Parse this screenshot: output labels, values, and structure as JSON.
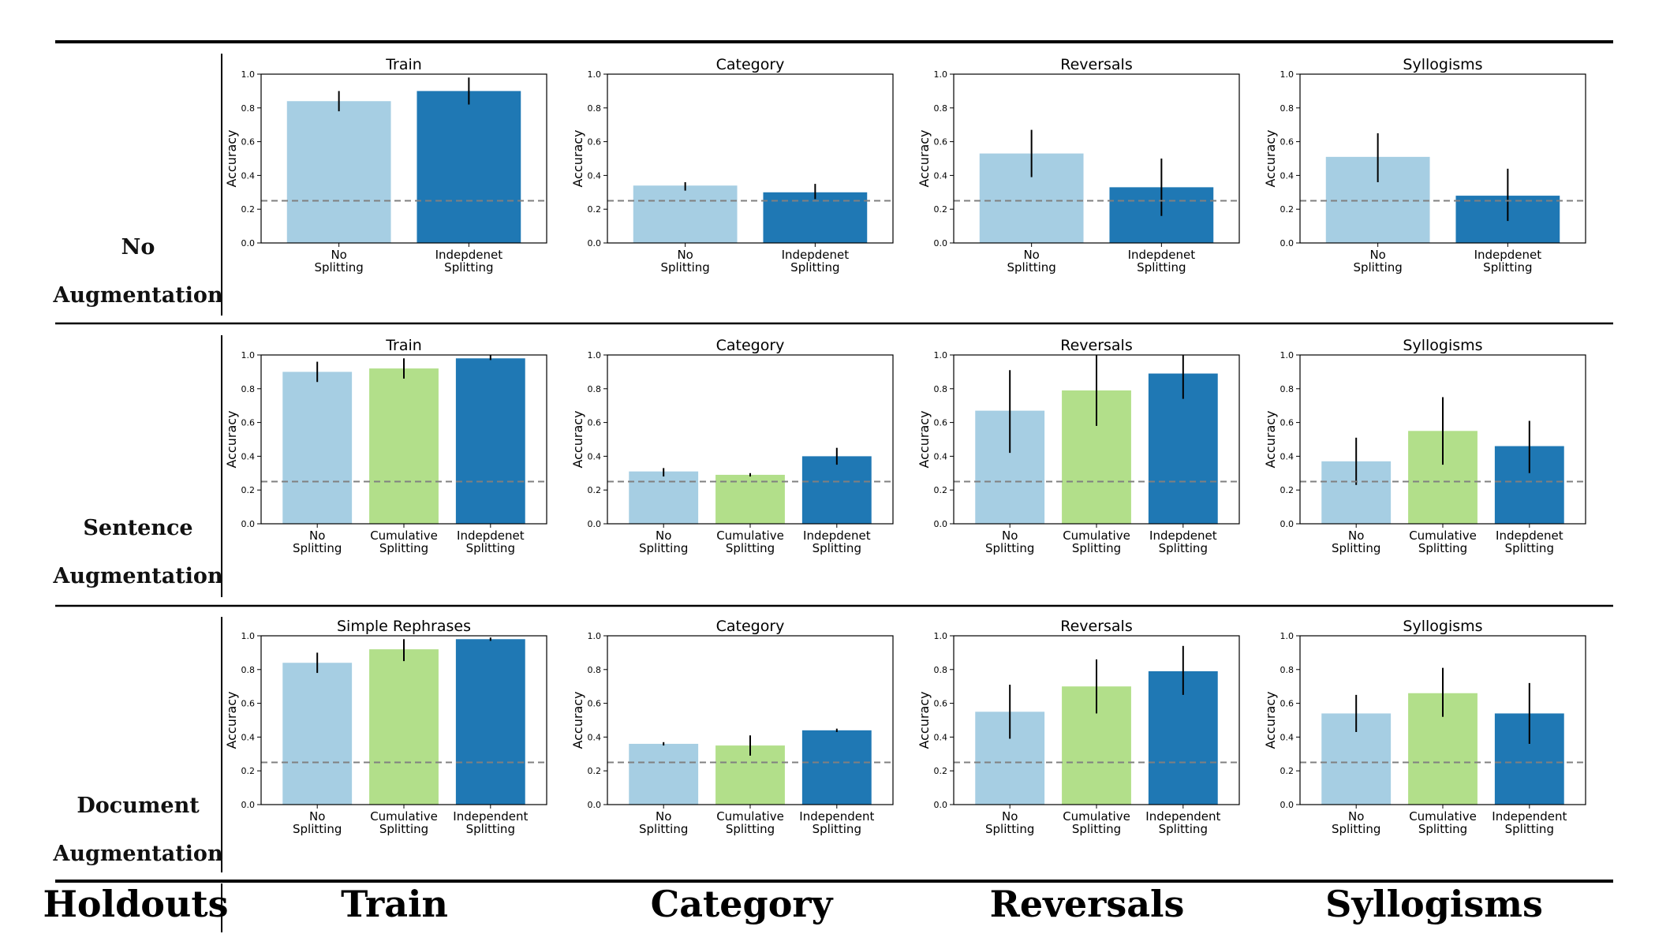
{
  "bottom_labels": {
    "holdouts": "Holdouts",
    "train": "Train",
    "category": "Category",
    "reversals": "Reversals",
    "syllogisms": "Syllogisms"
  },
  "row_labels": [
    {
      "line1": "No",
      "line2": "Augmentation"
    },
    {
      "line1": "Sentence",
      "line2": "Augmentation"
    },
    {
      "line1": "Document",
      "line2": "Augmentation"
    }
  ],
  "colors": {
    "no_splitting": "#a6cee3",
    "cumulative_splitting": "#b2df8a",
    "independent_splitting": "#1f78b4",
    "baseline": "#808080"
  },
  "chart_data": [
    {
      "row": 0,
      "col": 0,
      "type": "bar",
      "title": "Train",
      "ylabel": "Accuracy",
      "ylim": [
        0,
        1
      ],
      "yticks": [
        "0.0",
        "0.2",
        "0.4",
        "0.6",
        "0.8",
        "1.0"
      ],
      "baseline": 0.25,
      "categories": [
        [
          "No",
          "Splitting"
        ],
        [
          "Indepdenet",
          "Splitting"
        ]
      ],
      "values": [
        0.84,
        0.9
      ],
      "err_low": [
        0.78,
        0.82
      ],
      "err_high": [
        0.9,
        0.98
      ],
      "color_keys": [
        "no_splitting",
        "independent_splitting"
      ]
    },
    {
      "row": 0,
      "col": 1,
      "type": "bar",
      "title": "Category",
      "ylabel": "Accuracy",
      "ylim": [
        0,
        1
      ],
      "yticks": [
        "0.0",
        "0.2",
        "0.4",
        "0.6",
        "0.8",
        "1.0"
      ],
      "baseline": 0.25,
      "categories": [
        [
          "No",
          "Splitting"
        ],
        [
          "Indepdenet",
          "Splitting"
        ]
      ],
      "values": [
        0.34,
        0.3
      ],
      "err_low": [
        0.31,
        0.26
      ],
      "err_high": [
        0.36,
        0.35
      ],
      "color_keys": [
        "no_splitting",
        "independent_splitting"
      ]
    },
    {
      "row": 0,
      "col": 2,
      "type": "bar",
      "title": "Reversals",
      "ylabel": "Accuracy",
      "ylim": [
        0,
        1
      ],
      "yticks": [
        "0.0",
        "0.2",
        "0.4",
        "0.6",
        "0.8",
        "1.0"
      ],
      "baseline": 0.25,
      "categories": [
        [
          "No",
          "Splitting"
        ],
        [
          "Indepdenet",
          "Splitting"
        ]
      ],
      "values": [
        0.53,
        0.33
      ],
      "err_low": [
        0.39,
        0.16
      ],
      "err_high": [
        0.67,
        0.5
      ],
      "color_keys": [
        "no_splitting",
        "independent_splitting"
      ]
    },
    {
      "row": 0,
      "col": 3,
      "type": "bar",
      "title": "Syllogisms",
      "ylabel": "Accuracy",
      "ylim": [
        0,
        1
      ],
      "yticks": [
        "0.0",
        "0.2",
        "0.4",
        "0.6",
        "0.8",
        "1.0"
      ],
      "baseline": 0.25,
      "categories": [
        [
          "No",
          "Splitting"
        ],
        [
          "Indepdenet",
          "Splitting"
        ]
      ],
      "values": [
        0.51,
        0.28
      ],
      "err_low": [
        0.36,
        0.13
      ],
      "err_high": [
        0.65,
        0.44
      ],
      "color_keys": [
        "no_splitting",
        "independent_splitting"
      ]
    },
    {
      "row": 1,
      "col": 0,
      "type": "bar",
      "title": "Train",
      "ylabel": "Accuracy",
      "ylim": [
        0,
        1
      ],
      "yticks": [
        "0.0",
        "0.2",
        "0.4",
        "0.6",
        "0.8",
        "1.0"
      ],
      "baseline": 0.25,
      "categories": [
        [
          "No",
          "Splitting"
        ],
        [
          "Cumulative",
          "Splitting"
        ],
        [
          "Indepdenet",
          "Splitting"
        ]
      ],
      "values": [
        0.9,
        0.92,
        0.98
      ],
      "err_low": [
        0.84,
        0.86,
        0.97
      ],
      "err_high": [
        0.96,
        0.98,
        1.0
      ],
      "color_keys": [
        "no_splitting",
        "cumulative_splitting",
        "independent_splitting"
      ]
    },
    {
      "row": 1,
      "col": 1,
      "type": "bar",
      "title": "Category",
      "ylabel": "Accuracy",
      "ylim": [
        0,
        1
      ],
      "yticks": [
        "0.0",
        "0.2",
        "0.4",
        "0.6",
        "0.8",
        "1.0"
      ],
      "baseline": 0.25,
      "categories": [
        [
          "No",
          "Splitting"
        ],
        [
          "Cumulative",
          "Splitting"
        ],
        [
          "Indepdenet",
          "Splitting"
        ]
      ],
      "values": [
        0.31,
        0.29,
        0.4
      ],
      "err_low": [
        0.28,
        0.28,
        0.35
      ],
      "err_high": [
        0.33,
        0.3,
        0.45
      ],
      "color_keys": [
        "no_splitting",
        "cumulative_splitting",
        "independent_splitting"
      ]
    },
    {
      "row": 1,
      "col": 2,
      "type": "bar",
      "title": "Reversals",
      "ylabel": "Accuracy",
      "ylim": [
        0,
        1
      ],
      "yticks": [
        "0.0",
        "0.2",
        "0.4",
        "0.6",
        "0.8",
        "1.0"
      ],
      "baseline": 0.25,
      "categories": [
        [
          "No",
          "Splitting"
        ],
        [
          "Cumulative",
          "Splitting"
        ],
        [
          "Indepdenet",
          "Splitting"
        ]
      ],
      "values": [
        0.67,
        0.79,
        0.89
      ],
      "err_low": [
        0.42,
        0.58,
        0.74
      ],
      "err_high": [
        0.91,
        1.0,
        1.0
      ],
      "color_keys": [
        "no_splitting",
        "cumulative_splitting",
        "independent_splitting"
      ]
    },
    {
      "row": 1,
      "col": 3,
      "type": "bar",
      "title": "Syllogisms",
      "ylabel": "Accuracy",
      "ylim": [
        0,
        1
      ],
      "yticks": [
        "0.0",
        "0.2",
        "0.4",
        "0.6",
        "0.8",
        "1.0"
      ],
      "baseline": 0.25,
      "categories": [
        [
          "No",
          "Splitting"
        ],
        [
          "Cumulative",
          "Splitting"
        ],
        [
          "Indepdenet",
          "Splitting"
        ]
      ],
      "values": [
        0.37,
        0.55,
        0.46
      ],
      "err_low": [
        0.23,
        0.35,
        0.3
      ],
      "err_high": [
        0.51,
        0.75,
        0.61
      ],
      "color_keys": [
        "no_splitting",
        "cumulative_splitting",
        "independent_splitting"
      ]
    },
    {
      "row": 2,
      "col": 0,
      "type": "bar",
      "title": "Simple Rephrases",
      "ylabel": "Accuracy",
      "ylim": [
        0,
        1
      ],
      "yticks": [
        "0.0",
        "0.2",
        "0.4",
        "0.6",
        "0.8",
        "1.0"
      ],
      "baseline": 0.25,
      "categories": [
        [
          "No",
          "Splitting"
        ],
        [
          "Cumulative",
          "Splitting"
        ],
        [
          "Independent",
          "Splitting"
        ]
      ],
      "values": [
        0.84,
        0.92,
        0.98
      ],
      "err_low": [
        0.78,
        0.85,
        0.97
      ],
      "err_high": [
        0.9,
        0.98,
        0.99
      ],
      "color_keys": [
        "no_splitting",
        "cumulative_splitting",
        "independent_splitting"
      ]
    },
    {
      "row": 2,
      "col": 1,
      "type": "bar",
      "title": "Category",
      "ylabel": "Accuracy",
      "ylim": [
        0,
        1
      ],
      "yticks": [
        "0.0",
        "0.2",
        "0.4",
        "0.6",
        "0.8",
        "1.0"
      ],
      "baseline": 0.25,
      "categories": [
        [
          "No",
          "Splitting"
        ],
        [
          "Cumulative",
          "Splitting"
        ],
        [
          "Independent",
          "Splitting"
        ]
      ],
      "values": [
        0.36,
        0.35,
        0.44
      ],
      "err_low": [
        0.35,
        0.29,
        0.43
      ],
      "err_high": [
        0.37,
        0.41,
        0.45
      ],
      "color_keys": [
        "no_splitting",
        "cumulative_splitting",
        "independent_splitting"
      ]
    },
    {
      "row": 2,
      "col": 2,
      "type": "bar",
      "title": "Reversals",
      "ylabel": "Accuracy",
      "ylim": [
        0,
        1
      ],
      "yticks": [
        "0.0",
        "0.2",
        "0.4",
        "0.6",
        "0.8",
        "1.0"
      ],
      "baseline": 0.25,
      "categories": [
        [
          "No",
          "Splitting"
        ],
        [
          "Cumulative",
          "Splitting"
        ],
        [
          "Independent",
          "Splitting"
        ]
      ],
      "values": [
        0.55,
        0.7,
        0.79
      ],
      "err_low": [
        0.39,
        0.54,
        0.65
      ],
      "err_high": [
        0.71,
        0.86,
        0.94
      ],
      "color_keys": [
        "no_splitting",
        "cumulative_splitting",
        "independent_splitting"
      ]
    },
    {
      "row": 2,
      "col": 3,
      "type": "bar",
      "title": "Syllogisms",
      "ylabel": "Accuracy",
      "ylim": [
        0,
        1
      ],
      "yticks": [
        "0.0",
        "0.2",
        "0.4",
        "0.6",
        "0.8",
        "1.0"
      ],
      "baseline": 0.25,
      "categories": [
        [
          "No",
          "Splitting"
        ],
        [
          "Cumulative",
          "Splitting"
        ],
        [
          "Independent",
          "Splitting"
        ]
      ],
      "values": [
        0.54,
        0.66,
        0.54
      ],
      "err_low": [
        0.43,
        0.52,
        0.36
      ],
      "err_high": [
        0.65,
        0.81,
        0.72
      ],
      "color_keys": [
        "no_splitting",
        "cumulative_splitting",
        "independent_splitting"
      ]
    }
  ]
}
